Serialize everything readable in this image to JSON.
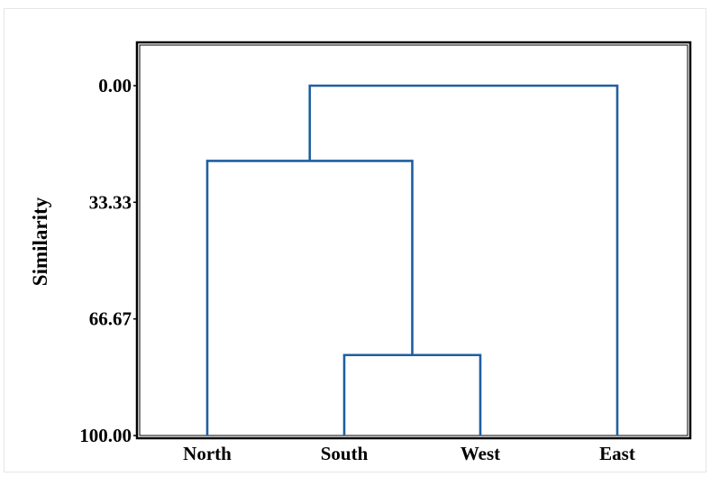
{
  "chart_data": {
    "type": "dendrogram",
    "ylabel": "Similarity",
    "y_ticks": [
      "0.00",
      "33.33",
      "66.67",
      "100.00"
    ],
    "ylim": [
      0,
      100
    ],
    "y_inverted": true,
    "leaves": [
      "North",
      "South",
      "West",
      "East"
    ],
    "merges": [
      {
        "left": "South",
        "right": "West",
        "similarity": 77.0
      },
      {
        "left": "North",
        "right": "South+West",
        "similarity": 21.5
      },
      {
        "left": "North+South+West",
        "right": "East",
        "similarity": 0.0
      }
    ],
    "line_color": "#1f5fa0"
  }
}
